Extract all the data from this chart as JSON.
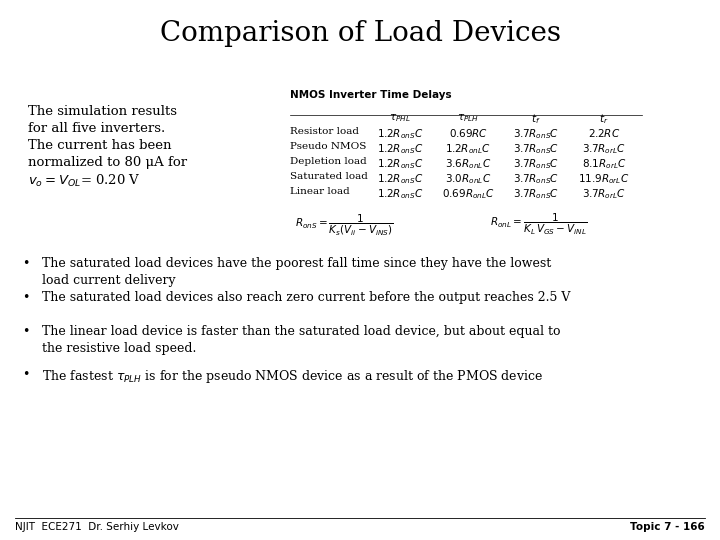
{
  "title": "Comparison of Load Devices",
  "background_color": "#ffffff",
  "title_fontsize": 20,
  "left_text_lines": [
    "The simulation results",
    "for all five inverters.",
    "The current has been",
    "normalized to 80 μA for"
  ],
  "left_last_line": "$v_o = V_{OL}$= 0.20 V",
  "table_title": "NMOS Inverter Time Delays",
  "col_headers": [
    "$\\tau_{PHL}$",
    "$\\tau_{PLH}$",
    "$t_f$",
    "$t_r$"
  ],
  "row_labels": [
    "Resistor load",
    "Pseudo NMOS",
    "Depletion load",
    "Saturated load",
    "Linear load"
  ],
  "table_data": [
    [
      "$1.2R_{onS}C$",
      "$0.69RC$",
      "$3.7R_{onS}C$",
      "$2.2RC$"
    ],
    [
      "$1.2R_{onS}C$",
      "$1.2R_{onL}C$",
      "$3.7R_{onS}C$",
      "$3.7R_{orL}C$"
    ],
    [
      "$1.2R_{onS}C$",
      "$3.6R_{onL}C$",
      "$3.7R_{onS}C$",
      "$8.1R_{orL}C$"
    ],
    [
      "$1.2R_{onS}C$",
      "$3.0R_{onL}C$",
      "$3.7R_{onS}C$",
      "$11.9R_{orL}C$"
    ],
    [
      "$1.2R_{onS}C$",
      "$0.69R_{onL}C$",
      "$3.7R_{onS}C$",
      "$3.7R_{orL}C$"
    ]
  ],
  "bullets": [
    "The saturated load devices have the poorest fall time since they have the lowest\nload current delivery",
    "The saturated load devices also reach zero current before the output reaches 2.5 V",
    "The linear load device is faster than the saturated load device, but about equal to\nthe resistive load speed.",
    "The fastest $\\tau_{PLH}$ is for the pseudo NMOS device as a result of the PMOS device"
  ],
  "footer_left": "NJIT  ECE271  Dr. Serhiy Levkov",
  "footer_right": "Topic 7 - 166"
}
